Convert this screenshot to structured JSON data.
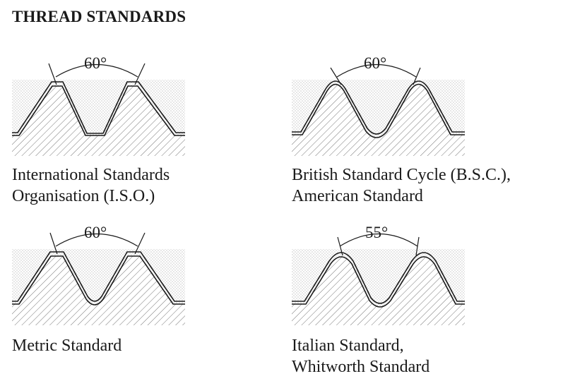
{
  "title": "THREAD STANDARDS",
  "colors": {
    "ink": "#1a1a1a",
    "stipple": "#8a8a8a",
    "hatch": "#777777",
    "background": "#ffffff"
  },
  "panels": [
    {
      "id": "iso",
      "angle": "60°",
      "profile": "flat-crest-flat-root",
      "caption": [
        "International Standards",
        "Organisation (I.S.O.)"
      ]
    },
    {
      "id": "bsc",
      "angle": "60°",
      "profile": "rounded-crest-rounded-root",
      "caption": [
        "British Standard Cycle (B.S.C.),",
        "American Standard"
      ]
    },
    {
      "id": "metric",
      "angle": "60°",
      "profile": "flat-crest-rounded-root",
      "caption": [
        "Metric Standard"
      ]
    },
    {
      "id": "whitworth",
      "angle": "55°",
      "profile": "rounded-crest-rounded-root",
      "caption": [
        "Italian Standard,",
        "Whitworth Standard"
      ]
    }
  ]
}
